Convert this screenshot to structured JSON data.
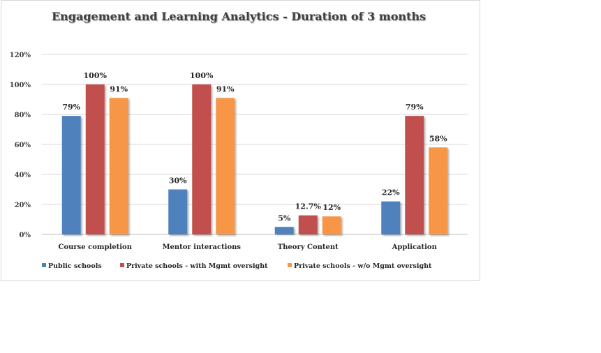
{
  "chart_data": {
    "type": "bar",
    "title": "Engagement and Learning Analytics - Duration of 3 months",
    "categories": [
      "Course completion",
      "Mentor interactions",
      "Theory Content",
      "Application"
    ],
    "series": [
      {
        "name": "Public schools",
        "color": "#4f81bd",
        "values": [
          79,
          30,
          5,
          22
        ],
        "labels": [
          "79%",
          "30%",
          "5%",
          "22%"
        ]
      },
      {
        "name": "Private schools - with Mgmt oversight",
        "color": "#c0504d",
        "values": [
          100,
          100,
          12.7,
          79
        ],
        "labels": [
          "100%",
          "100%",
          "12.7%",
          "79%"
        ]
      },
      {
        "name": "Private schools - w/o Mgmt oversight",
        "color": "#f79646",
        "values": [
          91,
          91,
          12,
          58
        ],
        "labels": [
          "91%",
          "91%",
          "12%",
          "58%"
        ]
      }
    ],
    "ylim": [
      0,
      120
    ],
    "yticks": [
      "0%",
      "20%",
      "40%",
      "60%",
      "80%",
      "100%",
      "120%"
    ],
    "grid": true,
    "legend_position": "bottom"
  }
}
